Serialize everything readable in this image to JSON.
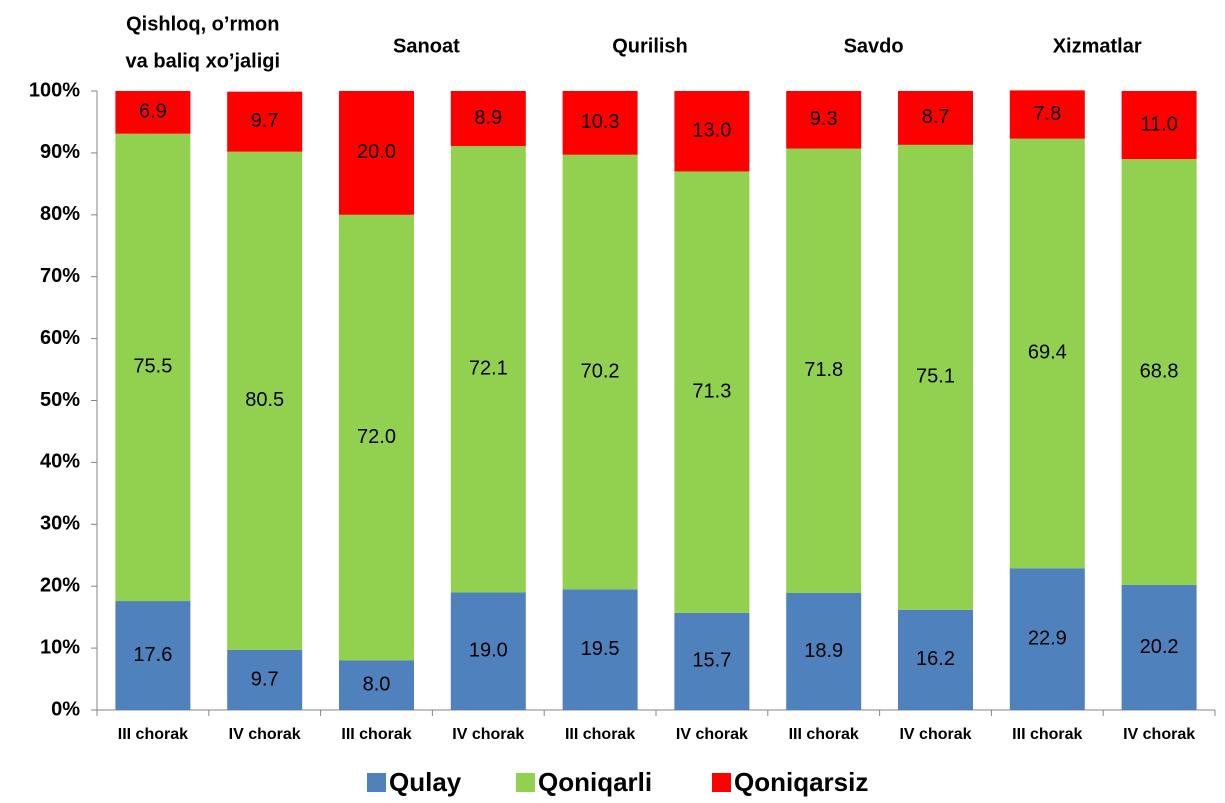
{
  "chart_data": {
    "type": "stacked_bar",
    "groups": [
      [
        "Qishloq, o’rmon",
        "va baliq xo’jaligi"
      ],
      [
        "Sanoat"
      ],
      [
        "Qurilish"
      ],
      [
        "Savdo"
      ],
      [
        "Xizmatlar"
      ]
    ],
    "categories": [
      "III chorak",
      "IV chorak",
      "III chorak",
      "IV chorak",
      "III chorak",
      "IV chorak",
      "III chorak",
      "IV chorak",
      "III chorak",
      "IV chorak"
    ],
    "series": [
      {
        "name": "Qulay",
        "color": "#4f81bd",
        "values": [
          17.6,
          9.7,
          8.0,
          19.0,
          19.5,
          15.7,
          18.9,
          16.2,
          22.9,
          20.2
        ],
        "value_labels": [
          "17.6",
          "9.7",
          "8.0",
          "19.0",
          "19.5",
          "15.7",
          "18.9",
          "16.2",
          "22.9",
          "20.2"
        ]
      },
      {
        "name": "Qoniqarli",
        "color": "#92d050",
        "values": [
          75.5,
          80.5,
          72.0,
          72.1,
          70.2,
          71.3,
          71.8,
          75.1,
          69.4,
          68.8
        ],
        "value_labels": [
          "75.5",
          "80.5",
          "72.0",
          "72.1",
          "70.2",
          "71.3",
          "71.8",
          "75.1",
          "69.4",
          "68.8"
        ]
      },
      {
        "name": "Qoniqarsiz",
        "color": "#ff0000",
        "values": [
          6.9,
          9.7,
          20.0,
          8.9,
          10.3,
          13.0,
          9.3,
          8.7,
          7.8,
          11.0
        ],
        "value_labels": [
          "6.9",
          "9.7",
          "20.0",
          "8.9",
          "10.3",
          "13.0",
          "9.3",
          "8.7",
          "7.8",
          "11.0"
        ]
      }
    ],
    "ylim": [
      0,
      100
    ],
    "yticks": [
      {
        "value": 0,
        "label": "0%"
      },
      {
        "value": 10,
        "label": "10%"
      },
      {
        "value": 20,
        "label": "20%"
      },
      {
        "value": 30,
        "label": "30%"
      },
      {
        "value": 40,
        "label": "40%"
      },
      {
        "value": 50,
        "label": "50%"
      },
      {
        "value": 60,
        "label": "60%"
      },
      {
        "value": 70,
        "label": "70%"
      },
      {
        "value": 80,
        "label": "80%"
      },
      {
        "value": 90,
        "label": "90%"
      },
      {
        "value": 100,
        "label": "100%"
      }
    ],
    "legend": "bottom"
  }
}
